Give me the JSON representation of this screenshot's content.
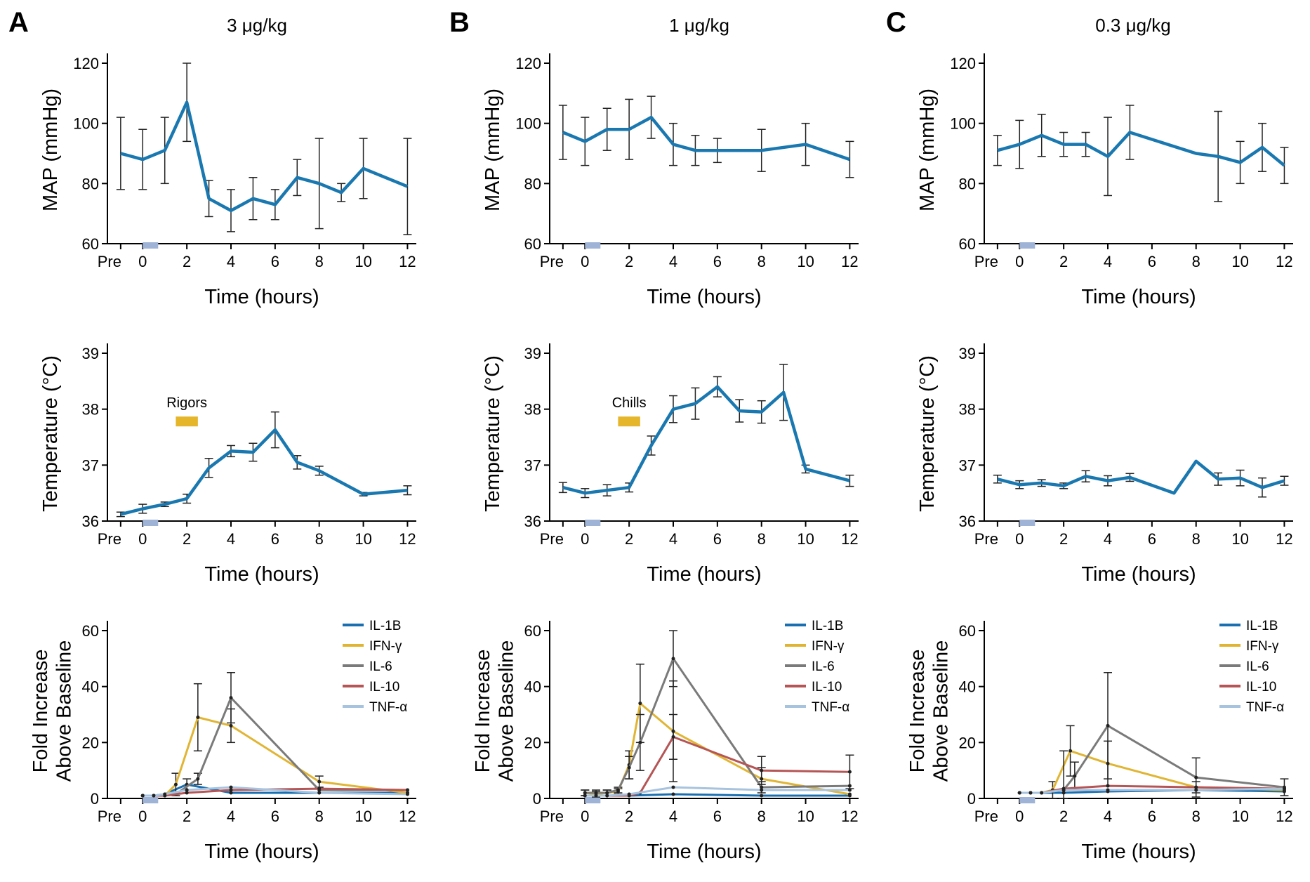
{
  "colors": {
    "map_line": "#1a78b0",
    "temp_line": "#1a78b0",
    "dose_marker": "#9fb3d6",
    "annotation_bar": "#e5b52a",
    "IL-1B": "#1a6fb0",
    "IFN-g": "#e1b534",
    "IL-6": "#7a7a7a",
    "IL-10": "#b55555",
    "TNF-a": "#a7c3de"
  },
  "x_axis": {
    "title": "Time (hours)",
    "tick_labels": [
      "Pre",
      "0",
      "2",
      "4",
      "6",
      "8",
      "10",
      "12"
    ]
  },
  "legend": [
    "IL-1B",
    "IFN-γ",
    "IL-6",
    "IL-10",
    "TNF-α"
  ],
  "panels": [
    {
      "letter": "A",
      "dose": "3 μg/kg"
    },
    {
      "letter": "B",
      "dose": "1 μg/kg"
    },
    {
      "letter": "C",
      "dose": "0.3 μg/kg"
    }
  ],
  "chart_data": [
    {
      "type": "line",
      "panel": "A",
      "title": "3 μg/kg",
      "row": "map",
      "xlabel": "Time (hours)",
      "ylabel": "MAP (mmHg)",
      "ylim": [
        60,
        120
      ],
      "yticks": [
        60,
        80,
        100,
        120
      ],
      "x": [
        -1,
        0,
        1,
        2,
        3,
        4,
        5,
        6,
        7,
        8,
        9,
        10,
        12
      ],
      "series": [
        {
          "values": [
            90,
            88,
            91,
            107,
            75,
            71,
            75,
            73,
            82,
            80,
            77,
            85,
            79
          ],
          "error": [
            12,
            10,
            11,
            13,
            6,
            7,
            7,
            5,
            6,
            15,
            3,
            10,
            16
          ]
        }
      ],
      "dose_bar": [
        0,
        0.7
      ]
    },
    {
      "type": "line",
      "panel": "A",
      "row": "temp",
      "xlabel": "Time (hours)",
      "ylabel": "Temperature (°C)",
      "ylim": [
        36,
        39
      ],
      "yticks": [
        36,
        37,
        38,
        39
      ],
      "x": [
        -1,
        0,
        1,
        2,
        3,
        4,
        5,
        6,
        7,
        8,
        10,
        12
      ],
      "series": [
        {
          "values": [
            36.12,
            36.22,
            36.3,
            36.4,
            36.95,
            37.25,
            37.23,
            37.63,
            37.05,
            36.9,
            36.48,
            36.55
          ],
          "error": [
            0.04,
            0.08,
            0.04,
            0.08,
            0.17,
            0.1,
            0.16,
            0.32,
            0.12,
            0.08,
            0.03,
            0.08
          ]
        }
      ],
      "annotation": {
        "label": "Rigors",
        "x_range": [
          1.5,
          2.5
        ],
        "y": 37.78
      },
      "dose_bar": [
        0,
        0.7
      ]
    },
    {
      "type": "line",
      "panel": "A",
      "row": "cytokine",
      "xlabel": "Time (hours)",
      "ylabel": "Fold Increase Above Baseline",
      "ylim": [
        0,
        60
      ],
      "yticks": [
        0,
        20,
        40,
        60
      ],
      "series": [
        {
          "name": "IL-1B",
          "x": [
            0,
            0.5,
            1,
            2,
            4,
            8,
            12
          ],
          "values": [
            1,
            1,
            1.5,
            5,
            2,
            2,
            2
          ],
          "error": [
            0,
            0,
            0,
            2,
            0,
            0,
            0
          ]
        },
        {
          "name": "IFN-γ",
          "x": [
            0,
            0.5,
            1,
            1.5,
            2.5,
            4,
            8,
            12
          ],
          "values": [
            1,
            1,
            1,
            5,
            29,
            26,
            6,
            2
          ],
          "error": [
            0,
            0,
            0,
            4,
            12,
            6,
            2,
            0
          ]
        },
        {
          "name": "IL-6",
          "x": [
            0,
            0.5,
            1,
            1.5,
            2.5,
            4,
            8,
            12
          ],
          "values": [
            1,
            1,
            1,
            1.5,
            7,
            36,
            3,
            3
          ],
          "error": [
            0,
            0,
            0,
            0,
            2,
            9,
            1,
            0
          ]
        },
        {
          "name": "IL-10",
          "x": [
            0,
            0.5,
            1,
            2,
            4,
            8,
            12
          ],
          "values": [
            1,
            1,
            1,
            2,
            3,
            3.5,
            3
          ],
          "error": [
            0,
            0,
            0,
            0,
            0,
            0,
            0
          ]
        },
        {
          "name": "TNF-α",
          "x": [
            0,
            0.5,
            1,
            2,
            4,
            8,
            12
          ],
          "values": [
            1,
            1,
            1.5,
            3,
            4,
            2,
            1.5
          ],
          "error": [
            0,
            0,
            0,
            0,
            0,
            0,
            0
          ]
        }
      ],
      "dose_bar": [
        0,
        0.7
      ]
    },
    {
      "type": "line",
      "panel": "B",
      "title": "1 μg/kg",
      "row": "map",
      "xlabel": "Time (hours)",
      "ylabel": "MAP (mmHg)",
      "ylim": [
        60,
        120
      ],
      "yticks": [
        60,
        80,
        100,
        120
      ],
      "x": [
        -1,
        0,
        1,
        2,
        3,
        4,
        5,
        6,
        8,
        10,
        12
      ],
      "series": [
        {
          "values": [
            97,
            94,
            98,
            98,
            102,
            93,
            91,
            91,
            91,
            93,
            88
          ],
          "error": [
            9,
            8,
            7,
            10,
            7,
            7,
            5,
            4,
            7,
            7,
            6
          ]
        }
      ],
      "dose_bar": [
        0,
        0.7
      ]
    },
    {
      "type": "line",
      "panel": "B",
      "row": "temp",
      "xlabel": "Time (hours)",
      "ylabel": "Temperature (°C)",
      "ylim": [
        36,
        39
      ],
      "yticks": [
        36,
        37,
        38,
        39
      ],
      "x": [
        -1,
        0,
        1,
        2,
        3,
        4,
        5,
        6,
        7,
        8,
        9,
        10,
        12
      ],
      "series": [
        {
          "values": [
            36.6,
            36.5,
            36.55,
            36.6,
            37.35,
            38.0,
            38.1,
            38.4,
            37.97,
            37.95,
            38.3,
            36.93,
            36.72
          ],
          "error": [
            0.09,
            0.08,
            0.1,
            0.08,
            0.17,
            0.24,
            0.28,
            0.18,
            0.2,
            0.2,
            0.5,
            0.07,
            0.1
          ]
        }
      ],
      "annotation": {
        "label": "Chills",
        "x_range": [
          1.5,
          2.5
        ],
        "y": 37.78
      },
      "dose_bar": [
        0,
        0.7
      ]
    },
    {
      "type": "line",
      "panel": "B",
      "row": "cytokine",
      "xlabel": "Time (hours)",
      "ylabel": "Fold Increase Above Baseline",
      "ylim": [
        0,
        60
      ],
      "yticks": [
        0,
        20,
        40,
        60
      ],
      "series": [
        {
          "name": "IL-1B",
          "x": [
            0,
            0.5,
            1,
            2,
            4,
            8,
            12
          ],
          "values": [
            1,
            1,
            1,
            1,
            1.5,
            1,
            1
          ],
          "error": [
            0,
            0,
            0,
            0,
            0,
            0,
            0
          ]
        },
        {
          "name": "IFN-γ",
          "x": [
            0,
            0.5,
            1,
            1.5,
            2,
            2.5,
            4,
            8,
            12
          ],
          "values": [
            2,
            1.5,
            2,
            2.5,
            12,
            34,
            24,
            7,
            1.5
          ],
          "error": [
            1,
            1,
            1,
            1,
            5,
            14,
            18,
            4,
            0
          ]
        },
        {
          "name": "IL-6",
          "x": [
            0,
            0.5,
            1,
            1.5,
            2,
            2.5,
            4,
            8,
            12
          ],
          "values": [
            2,
            2,
            2,
            3,
            11,
            20,
            50,
            4,
            4.5
          ],
          "error": [
            1,
            1,
            1,
            1,
            4,
            10,
            10,
            2,
            0
          ]
        },
        {
          "name": "IL-10",
          "x": [
            0,
            0.5,
            1,
            2,
            2.5,
            4,
            8,
            12
          ],
          "values": [
            1,
            1,
            1,
            1,
            2,
            22,
            10,
            9.5
          ],
          "error": [
            0,
            0,
            0,
            0,
            0,
            8,
            5,
            6
          ]
        },
        {
          "name": "TNF-α",
          "x": [
            0,
            0.5,
            1,
            2,
            4,
            8,
            12
          ],
          "values": [
            1,
            1,
            1,
            1.5,
            4,
            3,
            3
          ],
          "error": [
            0,
            0,
            0,
            0,
            0,
            0,
            0
          ]
        }
      ],
      "dose_bar": [
        0,
        0.7
      ]
    },
    {
      "type": "line",
      "panel": "C",
      "title": "0.3 μg/kg",
      "row": "map",
      "xlabel": "Time (hours)",
      "ylabel": "MAP (mmHg)",
      "ylim": [
        60,
        120
      ],
      "yticks": [
        60,
        80,
        100,
        120
      ],
      "x": [
        -1,
        0,
        1,
        2,
        3,
        4,
        5,
        8,
        9,
        10,
        11,
        12
      ],
      "series": [
        {
          "values": [
            91,
            93,
            96,
            93,
            93,
            89,
            97,
            90,
            89,
            87,
            92,
            86
          ],
          "error": [
            5,
            8,
            7,
            4,
            4,
            13,
            9,
            0,
            15,
            7,
            8,
            6
          ]
        }
      ],
      "dose_bar": [
        0,
        0.7
      ]
    },
    {
      "type": "line",
      "panel": "C",
      "row": "temp",
      "xlabel": "Time (hours)",
      "ylabel": "Temperature (°C)",
      "ylim": [
        36,
        39
      ],
      "yticks": [
        36,
        37,
        38,
        39
      ],
      "x": [
        -1,
        0,
        1,
        2,
        3,
        4,
        5,
        7,
        8,
        9,
        10,
        11,
        12
      ],
      "series": [
        {
          "values": [
            36.75,
            36.65,
            36.68,
            36.63,
            36.8,
            36.72,
            36.78,
            36.5,
            37.07,
            36.75,
            36.77,
            36.6,
            36.72
          ],
          "error": [
            0.07,
            0.07,
            0.06,
            0.05,
            0.1,
            0.09,
            0.07,
            0.0,
            0.0,
            0.11,
            0.14,
            0.17,
            0.08
          ]
        }
      ],
      "dose_bar": [
        0,
        0.7
      ]
    },
    {
      "type": "line",
      "panel": "C",
      "row": "cytokine",
      "xlabel": "Time (hours)",
      "ylabel": "Fold Increase Above Baseline",
      "ylim": [
        0,
        60
      ],
      "yticks": [
        0,
        20,
        40,
        60
      ],
      "series": [
        {
          "name": "IL-1B",
          "x": [
            0,
            0.5,
            1,
            2,
            4,
            8,
            12
          ],
          "values": [
            2,
            2,
            2,
            2,
            2.5,
            3,
            2.5
          ],
          "error": [
            0,
            0,
            0,
            0,
            0,
            0,
            0
          ]
        },
        {
          "name": "IFN-γ",
          "x": [
            0,
            0.5,
            1,
            1.5,
            2.3,
            4,
            8,
            12
          ],
          "values": [
            2,
            2,
            2,
            3,
            17,
            12.5,
            4,
            3
          ],
          "error": [
            0,
            0,
            0,
            3,
            9,
            8,
            2,
            0
          ]
        },
        {
          "name": "IL-6",
          "x": [
            0,
            0.5,
            1,
            2,
            2.5,
            4,
            8,
            12
          ],
          "values": [
            2,
            2,
            2,
            3,
            8,
            26,
            7.5,
            4
          ],
          "error": [
            0,
            0,
            0,
            14,
            5,
            19,
            7,
            3
          ]
        },
        {
          "name": "IL-10",
          "x": [
            0,
            0.5,
            1,
            2,
            4,
            8,
            12
          ],
          "values": [
            2,
            2,
            2,
            3.5,
            4.5,
            4,
            3.5
          ],
          "error": [
            0,
            0,
            0,
            0,
            0,
            0,
            0
          ]
        },
        {
          "name": "TNF-α",
          "x": [
            0,
            0.5,
            1,
            2,
            4,
            8,
            12
          ],
          "values": [
            2,
            2,
            2,
            3,
            3,
            3,
            3.5
          ],
          "error": [
            0,
            0,
            0,
            0,
            0,
            0,
            0
          ]
        }
      ],
      "dose_bar": [
        0,
        0.7
      ]
    }
  ]
}
